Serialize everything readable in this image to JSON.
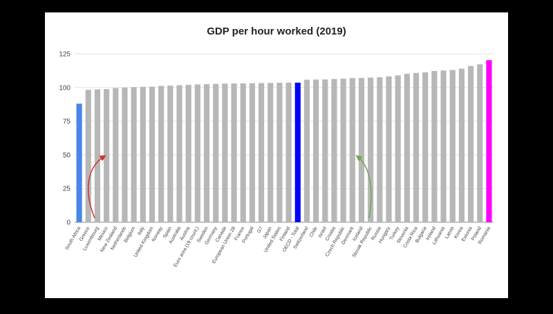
{
  "chart_data": {
    "type": "bar",
    "title": "GDP per hour worked (2019)",
    "categories": [
      "South Africa",
      "Greece",
      "Luxembourg",
      "Mexico",
      "New Zealand",
      "Netherlands",
      "Belgium",
      "Italy",
      "United Kingdom",
      "Norway",
      "Spain",
      "Australia",
      "Austria",
      "Euro area (19 count.)",
      "Sweden",
      "Germany",
      "Canada",
      "European Union 28",
      "France",
      "Portugal",
      "G7",
      "Japan",
      "United States",
      "Finland",
      "OECD - Total",
      "Switzerland",
      "Chile",
      "Israel",
      "Croatia",
      "Czech Republic",
      "Denmark",
      "Iceland",
      "Slovak Republic",
      "Russia",
      "Hungary",
      "Turkey",
      "Slovenia",
      "Costa Rica",
      "Bulgaria",
      "Ireland",
      "Lithuania",
      "Latvia",
      "Korea",
      "Estonia",
      "Poland",
      "Romania"
    ],
    "values": [
      88,
      98.3,
      98.6,
      98.8,
      99.6,
      99.9,
      100.3,
      100.5,
      100.6,
      101.2,
      101.4,
      101.7,
      102,
      102.3,
      102.5,
      102.7,
      102.9,
      103,
      103.1,
      103.2,
      103.3,
      103.4,
      103.5,
      103.6,
      103.6,
      105.8,
      105.9,
      106,
      106.3,
      106.6,
      107,
      107.1,
      107.3,
      107.6,
      108.3,
      109,
      110.2,
      110.8,
      111.3,
      112.3,
      112.6,
      113,
      114,
      116,
      117.2,
      120.3
    ],
    "colors": [
      "#4a86e8",
      "#b7b7b7",
      "#b7b7b7",
      "#b7b7b7",
      "#b7b7b7",
      "#b7b7b7",
      "#b7b7b7",
      "#b7b7b7",
      "#b7b7b7",
      "#b7b7b7",
      "#b7b7b7",
      "#b7b7b7",
      "#b7b7b7",
      "#b7b7b7",
      "#b7b7b7",
      "#b7b7b7",
      "#b7b7b7",
      "#b7b7b7",
      "#b7b7b7",
      "#b7b7b7",
      "#b7b7b7",
      "#b7b7b7",
      "#b7b7b7",
      "#b7b7b7",
      "#0000ff",
      "#b7b7b7",
      "#b7b7b7",
      "#b7b7b7",
      "#b7b7b7",
      "#b7b7b7",
      "#b7b7b7",
      "#b7b7b7",
      "#b7b7b7",
      "#b7b7b7",
      "#b7b7b7",
      "#b7b7b7",
      "#b7b7b7",
      "#b7b7b7",
      "#b7b7b7",
      "#b7b7b7",
      "#b7b7b7",
      "#b7b7b7",
      "#b7b7b7",
      "#b7b7b7",
      "#b7b7b7",
      "#ff00ff"
    ],
    "ylim": [
      0,
      125
    ],
    "yticks": [
      0,
      25,
      50,
      75,
      100,
      125
    ],
    "grid": true
  }
}
